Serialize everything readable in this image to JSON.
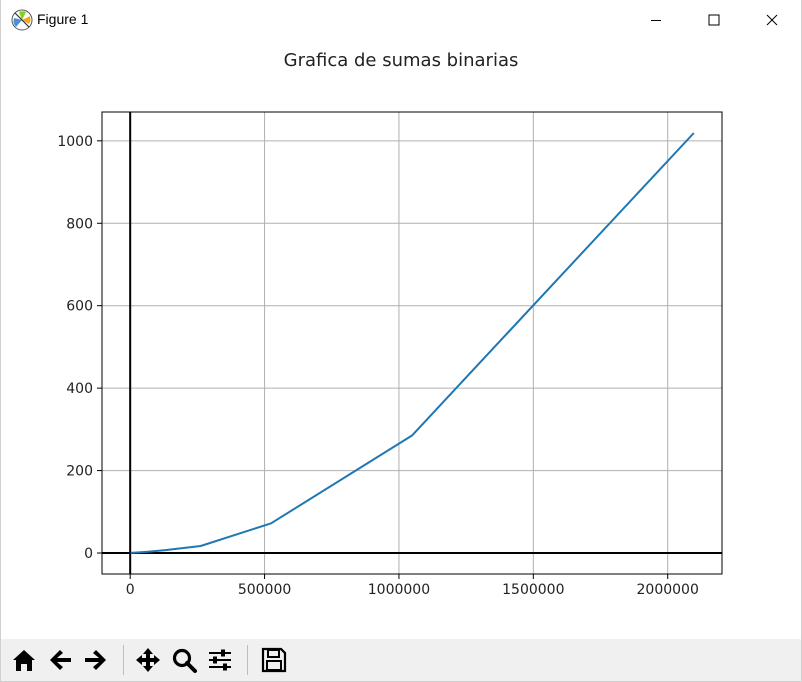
{
  "window": {
    "title": "Figure 1",
    "app_icon": "matplotlib-icon",
    "controls": {
      "minimize": "minimize-icon",
      "maximize": "maximize-icon",
      "close": "close-icon"
    }
  },
  "toolbar": {
    "buttons": [
      {
        "name": "home-button",
        "icon": "home-icon"
      },
      {
        "name": "back-button",
        "icon": "arrow-left-icon"
      },
      {
        "name": "forward-button",
        "icon": "arrow-right-icon"
      },
      {
        "name": "pan-button",
        "icon": "move-icon"
      },
      {
        "name": "zoom-button",
        "icon": "magnifier-icon"
      },
      {
        "name": "configure-subplots-button",
        "icon": "sliders-icon"
      },
      {
        "name": "save-button",
        "icon": "floppy-disk-icon"
      }
    ],
    "coordinates": ""
  },
  "chart_data": {
    "type": "line",
    "title": "Grafica de sumas binarias",
    "xlabel": "",
    "ylabel": "",
    "x_ticks": [
      0,
      500000,
      1000000,
      1500000,
      2000000
    ],
    "x_tick_labels": [
      "0",
      "500000",
      "1000000",
      "1500000",
      "2000000"
    ],
    "y_ticks": [
      0,
      200,
      400,
      600,
      800,
      1000
    ],
    "y_tick_labels": [
      "0",
      "200",
      "400",
      "600",
      "800",
      "1000"
    ],
    "xlim": [
      -104857,
      2202009
    ],
    "ylim": [
      -50.95,
      1069.95
    ],
    "grid": true,
    "reference_lines": {
      "x": 0,
      "y": 0,
      "color": "#000000"
    },
    "series": [
      {
        "color": "#1f77b4",
        "x": [
          2048,
          4096,
          8192,
          16384,
          32768,
          65536,
          131072,
          262144,
          524288,
          1048576,
          2097152
        ],
        "values": [
          0.2,
          0.3,
          0.5,
          0.9,
          1.6,
          3,
          7,
          17,
          72,
          285,
          1019
        ]
      }
    ]
  }
}
